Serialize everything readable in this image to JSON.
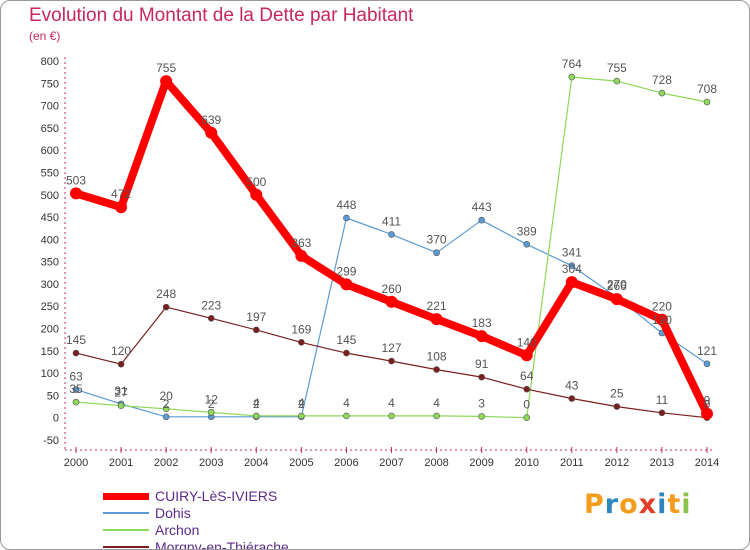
{
  "chart_data": {
    "type": "line",
    "title": "Evolution du Montant de la Dette par Habitant",
    "subtitle": "(en €)",
    "x": [
      "2000",
      "2001",
      "2002",
      "2003",
      "2004",
      "2005",
      "2006",
      "2007",
      "2008",
      "2009",
      "2010",
      "2011",
      "2012",
      "2013",
      "2014"
    ],
    "ylim": [
      -50,
      800
    ],
    "yticks": [
      -50,
      0,
      50,
      100,
      150,
      200,
      250,
      300,
      350,
      400,
      450,
      500,
      550,
      600,
      650,
      700,
      750,
      800
    ],
    "grid": false,
    "legend_position": "bottom-left",
    "series": [
      {
        "name": "CUIRY-LèS-IVIERS",
        "color": "#ff0000",
        "role": "main",
        "values": [
          503,
          472,
          755,
          639,
          500,
          363,
          299,
          260,
          221,
          183,
          140,
          304,
          266,
          220,
          9
        ]
      },
      {
        "name": "Dohis",
        "color": "#5b9bd5",
        "role": "thin",
        "values": [
          63,
          31,
          2,
          2,
          2,
          2,
          448,
          411,
          370,
          443,
          389,
          341,
          270,
          190,
          121
        ]
      },
      {
        "name": "Archon",
        "color": "#8ed85a",
        "role": "thin",
        "values": [
          35,
          27,
          20,
          12,
          4,
          4,
          4,
          4,
          4,
          3,
          0,
          764,
          755,
          728,
          708
        ]
      },
      {
        "name": "Morgny-en-Thiérache",
        "color": "#7a1e1e",
        "role": "thin",
        "values": [
          145,
          120,
          248,
          223,
          197,
          169,
          145,
          127,
          108,
          91,
          64,
          43,
          25,
          11,
          0
        ]
      }
    ],
    "point_labels": {
      "CUIRY-LèS-IVIERS": [
        "503",
        "472",
        "755",
        "639",
        "500",
        "363",
        "299",
        "260",
        "221",
        "183",
        "140",
        "304",
        "266",
        "220",
        "9"
      ],
      "Dohis": [
        "63",
        "31",
        "2",
        "2",
        "2",
        "2",
        "448",
        "411",
        "370",
        "443",
        "389",
        "341",
        "270",
        "190",
        "121"
      ],
      "Archon": [
        "35",
        "27",
        "20",
        "12",
        "4",
        "4",
        "4",
        "4",
        "4",
        "3",
        "0",
        "764",
        "755",
        "728",
        "708"
      ],
      "Morgny-en-Thiérache": [
        "145",
        "120",
        "248",
        "223",
        "197",
        "169",
        "145",
        "127",
        "108",
        "91",
        "64",
        "43",
        "25",
        "11",
        "0"
      ]
    }
  },
  "logo": {
    "text": "Proxiti",
    "letters": [
      "P",
      "r",
      "o",
      "x",
      "i",
      "t",
      "i"
    ],
    "colors": [
      "#f39c1e",
      "#2e86c1",
      "#f39c1e",
      "#e23d28",
      "#2e86c1",
      "#f39c1e",
      "#8bc34a"
    ]
  }
}
